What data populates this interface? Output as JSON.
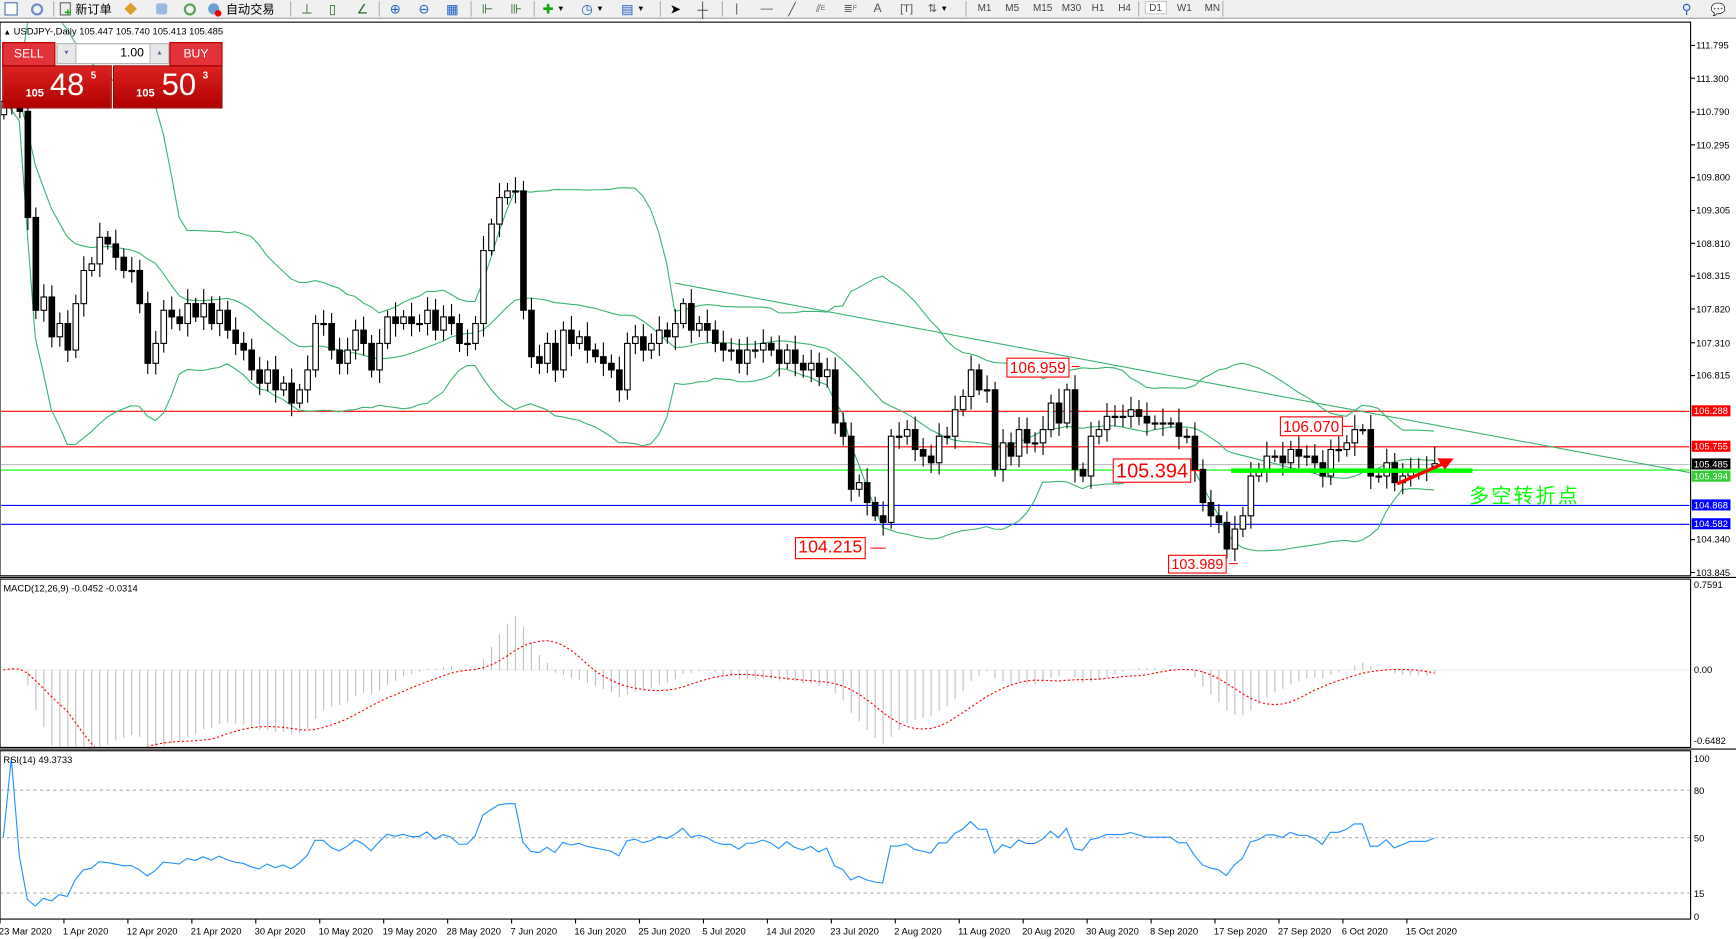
{
  "toolbar": {
    "new_order_label": "新订单",
    "auto_trading_label": "自动交易",
    "timeframes": [
      "M1",
      "M5",
      "M15",
      "M30",
      "H1",
      "H4",
      "D1",
      "W1",
      "MN"
    ],
    "active_timeframe": "D1"
  },
  "chart": {
    "symbol_header": "USDJPY-,Daily",
    "ohlc_readout": "105.447 105.740 105.413 105.485",
    "annotation_text": "多空转折点",
    "colors": {
      "bollinger": "#3cb371",
      "candle_up": "#ffffff",
      "candle_down": "#000000",
      "macd_signal": "#ff0000",
      "macd_hist": "#c0c0c0",
      "rsi": "#1e90ff",
      "annotation": "#00ff00"
    }
  },
  "trade_panel": {
    "sell_label": "SELL",
    "buy_label": "BUY",
    "lot": "1.00",
    "sell_price": {
      "big": "105",
      "main": "48",
      "sup": "5"
    },
    "buy_price": {
      "big": "105",
      "main": "50",
      "sup": "3"
    }
  },
  "chart_data": {
    "type": "candlestick",
    "timeframe": "Daily",
    "date_labels": [
      "23 Mar 2020",
      "1 Apr 2020",
      "12 Apr 2020",
      "21 Apr 2020",
      "30 Apr 2020",
      "10 May 2020",
      "19 May 2020",
      "28 May 2020",
      "7 Jun 2020",
      "16 Jun 2020",
      "25 Jun 2020",
      "5 Jul 2020",
      "14 Jul 2020",
      "23 Jul 2020",
      "2 Aug 2020",
      "11 Aug 2020",
      "20 Aug 2020",
      "30 Aug 2020",
      "8 Sep 2020",
      "17 Sep 2020",
      "27 Sep 2020",
      "6 Oct 2020",
      "15 Oct 2020"
    ],
    "bars_per_date_label": 8,
    "closes": [
      110.95,
      111.2,
      110.8,
      109.2,
      107.8,
      108.0,
      107.4,
      107.6,
      107.2,
      107.9,
      108.4,
      108.5,
      108.9,
      108.8,
      108.6,
      108.4,
      108.4,
      107.9,
      107.0,
      107.3,
      107.8,
      107.7,
      107.6,
      107.9,
      107.7,
      107.9,
      107.6,
      107.8,
      107.5,
      107.3,
      107.2,
      106.9,
      106.7,
      106.9,
      106.6,
      106.7,
      106.4,
      106.6,
      106.9,
      107.6,
      107.6,
      107.2,
      107.0,
      107.2,
      107.5,
      107.3,
      106.9,
      107.3,
      107.7,
      107.6,
      107.7,
      107.6,
      107.6,
      107.8,
      107.5,
      107.7,
      107.6,
      107.3,
      107.3,
      107.6,
      108.7,
      109.1,
      109.5,
      109.6,
      109.6,
      107.8,
      107.1,
      107.0,
      107.3,
      106.9,
      107.5,
      107.3,
      107.4,
      107.2,
      107.1,
      107.0,
      106.9,
      106.6,
      107.3,
      107.4,
      107.2,
      107.3,
      107.5,
      107.4,
      107.6,
      107.9,
      107.5,
      107.6,
      107.5,
      107.3,
      107.2,
      107.2,
      107.0,
      107.2,
      107.2,
      107.3,
      107.2,
      107.0,
      107.2,
      107.0,
      106.9,
      107.0,
      106.8,
      106.9,
      106.1,
      105.9,
      105.1,
      105.2,
      104.9,
      104.7,
      104.6,
      105.9,
      105.9,
      106.0,
      105.7,
      105.6,
      105.5,
      105.9,
      105.9,
      106.3,
      106.5,
      106.9,
      106.6,
      106.6,
      105.4,
      105.8,
      105.6,
      106.0,
      105.8,
      105.8,
      106.0,
      106.4,
      106.1,
      106.6,
      105.4,
      105.3,
      105.9,
      106.0,
      106.2,
      106.2,
      106.2,
      106.3,
      106.2,
      106.1,
      106.1,
      106.1,
      106.1,
      105.9,
      105.9,
      105.4,
      104.9,
      104.7,
      104.6,
      104.2,
      104.5,
      104.7,
      105.3,
      105.4,
      105.6,
      105.6,
      105.5,
      105.7,
      105.6,
      105.6,
      105.5,
      105.3,
      105.7,
      105.7,
      105.8,
      106.0,
      106.0,
      105.3,
      105.3,
      105.5,
      105.2,
      105.3,
      105.4,
      105.4,
      105.4,
      105.485
    ],
    "current_bar": {
      "open": 105.447,
      "high": 105.74,
      "low": 105.413,
      "close": 105.485
    },
    "y_axis": {
      "min": 103.845,
      "max": 111.795,
      "ticks": [
        "111.795",
        "111.300",
        "110.790",
        "110.295",
        "109.800",
        "109.305",
        "108.810",
        "108.315",
        "107.820",
        "107.310",
        "106.815",
        "104.340",
        "103.845"
      ]
    },
    "horizontal_lines": [
      {
        "price": "106.288",
        "color": "#ff0000"
      },
      {
        "price": "105.755",
        "color": "#ff0000"
      },
      {
        "price": "105.485",
        "color": "#000000",
        "line_color": "#c0c0c0"
      },
      {
        "price": "105.394",
        "color": "#32cd32",
        "line_color": "#00ff00"
      },
      {
        "price": "104.868",
        "color": "#0000ff"
      },
      {
        "price": "104.582",
        "color": "#0000ff"
      }
    ],
    "trendline": {
      "from_bar": 84,
      "from_price": 108.21,
      "to_bar": 211,
      "to_price": 105.35,
      "color": "#3cb371"
    },
    "price_labels": [
      {
        "text": "106.959",
        "bar": 133
      },
      {
        "text": "104.215",
        "bar": 111
      },
      {
        "text": "105.394",
        "bar": 135
      },
      {
        "text": "103.989",
        "bar": 153
      },
      {
        "text": "106.070",
        "bar": 167
      }
    ],
    "indicators": {
      "bollinger": {
        "period": 20,
        "deviation": 2
      },
      "macd": {
        "label": "MACD(12,26,9) -0.0452 -0.0314",
        "axis": [
          "0.7591",
          "0.00",
          "-0.6482"
        ]
      },
      "rsi": {
        "label": "RSI(14) 49.3733",
        "axis": [
          "100",
          "80",
          "50",
          "15",
          "0"
        ],
        "levels": [
          80,
          50,
          15
        ]
      }
    }
  }
}
